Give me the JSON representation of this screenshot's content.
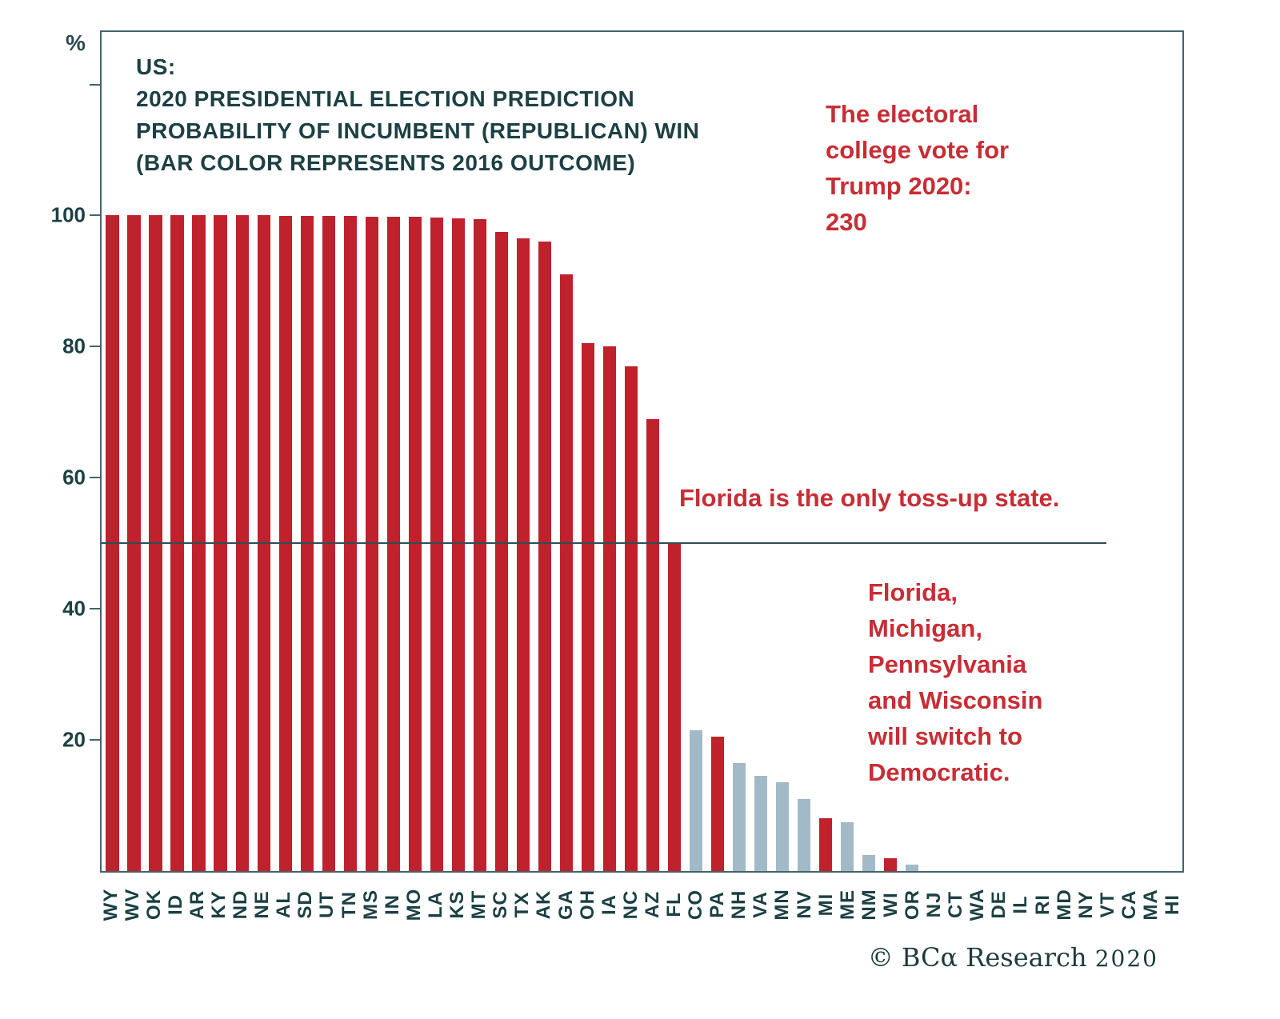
{
  "chart_data": {
    "type": "bar",
    "unit_label": "%",
    "title_lines": [
      "US:",
      "2020 PRESIDENTIAL ELECTION PREDICTION",
      "PROBABILITY OF INCUMBENT (REPUBLICAN) WIN",
      "(BAR COLOR REPRESENTS 2016 OUTCOME)"
    ],
    "ylabel": "%",
    "ylim": [
      0,
      128
    ],
    "yticks_labeled": [
      20,
      40,
      60,
      80,
      100
    ],
    "yticks_unlabeled": [
      120
    ],
    "reference_line_value": 50,
    "colors": {
      "republican_2016_bar": "#bf212d",
      "democratic_2016_bar": "#a2b9c7",
      "annotation_text": "#c82d35",
      "title_text": "#1c4044",
      "axis": "#44646c"
    },
    "bars": [
      {
        "state": "WY",
        "value": 100,
        "outcome_2016": "R"
      },
      {
        "state": "WV",
        "value": 100,
        "outcome_2016": "R"
      },
      {
        "state": "OK",
        "value": 100,
        "outcome_2016": "R"
      },
      {
        "state": "ID",
        "value": 100,
        "outcome_2016": "R"
      },
      {
        "state": "AR",
        "value": 100,
        "outcome_2016": "R"
      },
      {
        "state": "KY",
        "value": 100,
        "outcome_2016": "R"
      },
      {
        "state": "ND",
        "value": 100,
        "outcome_2016": "R"
      },
      {
        "state": "NE",
        "value": 100,
        "outcome_2016": "R"
      },
      {
        "state": "AL",
        "value": 99.9,
        "outcome_2016": "R"
      },
      {
        "state": "SD",
        "value": 99.9,
        "outcome_2016": "R"
      },
      {
        "state": "UT",
        "value": 99.9,
        "outcome_2016": "R"
      },
      {
        "state": "TN",
        "value": 99.9,
        "outcome_2016": "R"
      },
      {
        "state": "MS",
        "value": 99.8,
        "outcome_2016": "R"
      },
      {
        "state": "IN",
        "value": 99.8,
        "outcome_2016": "R"
      },
      {
        "state": "MO",
        "value": 99.8,
        "outcome_2016": "R"
      },
      {
        "state": "LA",
        "value": 99.7,
        "outcome_2016": "R"
      },
      {
        "state": "KS",
        "value": 99.6,
        "outcome_2016": "R"
      },
      {
        "state": "MT",
        "value": 99.5,
        "outcome_2016": "R"
      },
      {
        "state": "SC",
        "value": 97.5,
        "outcome_2016": "R"
      },
      {
        "state": "TX",
        "value": 96.5,
        "outcome_2016": "R"
      },
      {
        "state": "AK",
        "value": 96,
        "outcome_2016": "R"
      },
      {
        "state": "GA",
        "value": 91,
        "outcome_2016": "R"
      },
      {
        "state": "OH",
        "value": 80.5,
        "outcome_2016": "R"
      },
      {
        "state": "IA",
        "value": 80,
        "outcome_2016": "R"
      },
      {
        "state": "NC",
        "value": 77,
        "outcome_2016": "R"
      },
      {
        "state": "AZ",
        "value": 69,
        "outcome_2016": "R"
      },
      {
        "state": "FL",
        "value": 50,
        "outcome_2016": "R"
      },
      {
        "state": "CO",
        "value": 21.5,
        "outcome_2016": "D"
      },
      {
        "state": "PA",
        "value": 20.5,
        "outcome_2016": "R"
      },
      {
        "state": "NH",
        "value": 16.5,
        "outcome_2016": "D"
      },
      {
        "state": "VA",
        "value": 14.5,
        "outcome_2016": "D"
      },
      {
        "state": "MN",
        "value": 13.5,
        "outcome_2016": "D"
      },
      {
        "state": "NV",
        "value": 11,
        "outcome_2016": "D"
      },
      {
        "state": "MI",
        "value": 8,
        "outcome_2016": "R"
      },
      {
        "state": "ME",
        "value": 7.5,
        "outcome_2016": "D"
      },
      {
        "state": "NM",
        "value": 2.5,
        "outcome_2016": "D"
      },
      {
        "state": "WI",
        "value": 2,
        "outcome_2016": "R"
      },
      {
        "state": "OR",
        "value": 1,
        "outcome_2016": "D"
      },
      {
        "state": "NJ",
        "value": 0,
        "outcome_2016": "D"
      },
      {
        "state": "CT",
        "value": 0,
        "outcome_2016": "D"
      },
      {
        "state": "WA",
        "value": 0,
        "outcome_2016": "D"
      },
      {
        "state": "DE",
        "value": 0,
        "outcome_2016": "D"
      },
      {
        "state": "IL",
        "value": 0,
        "outcome_2016": "D"
      },
      {
        "state": "RI",
        "value": 0,
        "outcome_2016": "D"
      },
      {
        "state": "MD",
        "value": 0,
        "outcome_2016": "D"
      },
      {
        "state": "NY",
        "value": 0,
        "outcome_2016": "D"
      },
      {
        "state": "VT",
        "value": 0,
        "outcome_2016": "D"
      },
      {
        "state": "CA",
        "value": 0,
        "outcome_2016": "D"
      },
      {
        "state": "MA",
        "value": 0,
        "outcome_2016": "D"
      },
      {
        "state": "HI",
        "value": 0,
        "outcome_2016": "D"
      }
    ]
  },
  "annotations": {
    "electoral_college": {
      "lines": [
        "The electoral",
        "college vote for",
        "Trump 2020:",
        "230"
      ]
    },
    "florida_tossup": "Florida is the only toss-up state.",
    "switch_democratic": {
      "lines": [
        "Florida,",
        "Michigan,",
        "Pennsylvania",
        "and Wisconsin",
        "will switch to",
        "Democratic."
      ]
    }
  },
  "footer": {
    "copyright": "© BCα Research",
    "year": "2020"
  }
}
